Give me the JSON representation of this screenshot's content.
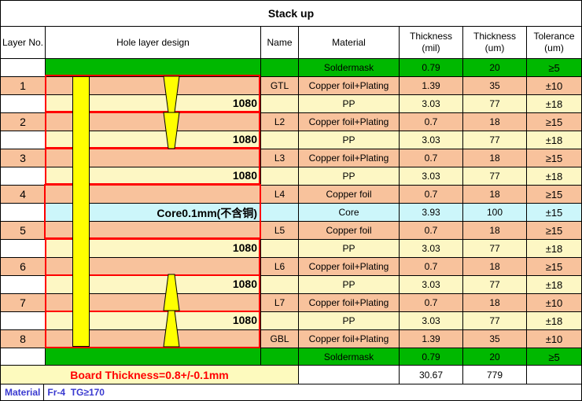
{
  "title": "Stack up",
  "headers": {
    "layer_no": "Layer No.",
    "hole_design": "Hole layer design",
    "name": "Name",
    "material": "Material",
    "thickness_mil": "Thickness\n(mil)",
    "thickness_um": "Thickness\n(um)",
    "tolerance": "Tolerance\n(um)"
  },
  "rows": [
    {
      "layer": "",
      "name": "",
      "material": "Soldermask",
      "mil": "0.79",
      "um": "20",
      "tol": "≥5"
    },
    {
      "layer": "1",
      "name": "GTL",
      "material": "Copper foil+Plating",
      "mil": "1.39",
      "um": "35",
      "tol": "±10"
    },
    {
      "layer": "",
      "name": "",
      "material": "PP",
      "mil": "3.03",
      "um": "77",
      "tol": "±18"
    },
    {
      "layer": "2",
      "name": "L2",
      "material": "Copper foil+Plating",
      "mil": "0.7",
      "um": "18",
      "tol": "≥15"
    },
    {
      "layer": "",
      "name": "",
      "material": "PP",
      "mil": "3.03",
      "um": "77",
      "tol": "±18"
    },
    {
      "layer": "3",
      "name": "L3",
      "material": "Copper foil+Plating",
      "mil": "0.7",
      "um": "18",
      "tol": "≥15"
    },
    {
      "layer": "",
      "name": "",
      "material": "PP",
      "mil": "3.03",
      "um": "77",
      "tol": "±18"
    },
    {
      "layer": "4",
      "name": "L4",
      "material": "Copper foil",
      "mil": "0.7",
      "um": "18",
      "tol": "≥15"
    },
    {
      "layer": "",
      "name": "",
      "material": "Core",
      "mil": "3.93",
      "um": "100",
      "tol": "±15"
    },
    {
      "layer": "5",
      "name": "L5",
      "material": "Copper foil",
      "mil": "0.7",
      "um": "18",
      "tol": "≥15"
    },
    {
      "layer": "",
      "name": "",
      "material": "PP",
      "mil": "3.03",
      "um": "77",
      "tol": "±18"
    },
    {
      "layer": "6",
      "name": "L6",
      "material": "Copper foil+Plating",
      "mil": "0.7",
      "um": "18",
      "tol": "≥15"
    },
    {
      "layer": "",
      "name": "",
      "material": "PP",
      "mil": "3.03",
      "um": "77",
      "tol": "±18"
    },
    {
      "layer": "7",
      "name": "L7",
      "material": "Copper foil+Plating",
      "mil": "0.7",
      "um": "18",
      "tol": "±10"
    },
    {
      "layer": "",
      "name": "",
      "material": "PP",
      "mil": "3.03",
      "um": "77",
      "tol": "±18"
    },
    {
      "layer": "8",
      "name": "GBL",
      "material": "Copper foil+Plating",
      "mil": "1.39",
      "um": "35",
      "tol": "±10"
    },
    {
      "layer": "",
      "name": "",
      "material": "Soldermask",
      "mil": "0.79",
      "um": "20",
      "tol": "≥5"
    }
  ],
  "design_labels": {
    "pp1": "1080",
    "pp2": "1080",
    "pp3": "1080",
    "core": "Core0.1mm(不含铜)",
    "pp4": "1080",
    "pp5": "1080",
    "pp6": "1080"
  },
  "footer": {
    "board_thickness": "Board Thickness=0.8+/-0.1mm",
    "total_mil": "30.67",
    "total_um": "779",
    "material_label": "Material",
    "material_value": "Fr-4  TG≥170"
  },
  "colors": {
    "soldermask": "#00b800",
    "copper": "#f8c29c",
    "pp": "#fdf7c4",
    "core": "#ccf6fa",
    "drill": "#ffff00",
    "outline": "#ff0000"
  }
}
